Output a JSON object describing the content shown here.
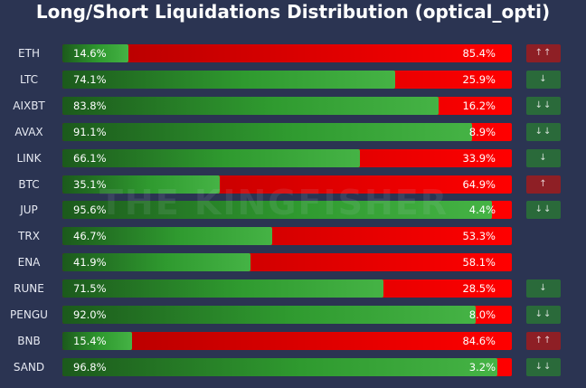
{
  "title": "Long/Short Liquidations Distribution (optical_opti)",
  "watermark": "THE KINGFISHER",
  "colors": {
    "background": "#2b3452",
    "long": "#3aa63a",
    "short": "#e00000",
    "signal_up": "#8e1f25",
    "signal_down": "#2a6a3a"
  },
  "rows": [
    {
      "symbol": "ETH",
      "long_label": "14.6%",
      "short_label": "85.4%",
      "signal": "↑↑",
      "signal_type": "up"
    },
    {
      "symbol": "LTC",
      "long_label": "74.1%",
      "short_label": "25.9%",
      "signal": "↓",
      "signal_type": "down"
    },
    {
      "symbol": "AIXBT",
      "long_label": "83.8%",
      "short_label": "16.2%",
      "signal": "↓↓",
      "signal_type": "down"
    },
    {
      "symbol": "AVAX",
      "long_label": "91.1%",
      "short_label": "8.9%",
      "signal": "↓↓",
      "signal_type": "down"
    },
    {
      "symbol": "LINK",
      "long_label": "66.1%",
      "short_label": "33.9%",
      "signal": "↓",
      "signal_type": "down"
    },
    {
      "symbol": "BTC",
      "long_label": "35.1%",
      "short_label": "64.9%",
      "signal": "↑",
      "signal_type": "up"
    },
    {
      "symbol": "JUP",
      "long_label": "95.6%",
      "short_label": "4.4%",
      "signal": "↓↓",
      "signal_type": "down"
    },
    {
      "symbol": "TRX",
      "long_label": "46.7%",
      "short_label": "53.3%",
      "signal": "",
      "signal_type": "none"
    },
    {
      "symbol": "ENA",
      "long_label": "41.9%",
      "short_label": "58.1%",
      "signal": "",
      "signal_type": "none"
    },
    {
      "symbol": "RUNE",
      "long_label": "71.5%",
      "short_label": "28.5%",
      "signal": "↓",
      "signal_type": "down"
    },
    {
      "symbol": "PENGU",
      "long_label": "92.0%",
      "short_label": "8.0%",
      "signal": "↓↓",
      "signal_type": "down"
    },
    {
      "symbol": "BNB",
      "long_label": "15.4%",
      "short_label": "84.6%",
      "signal": "↑↑",
      "signal_type": "up"
    },
    {
      "symbol": "SAND",
      "long_label": "96.8%",
      "short_label": "3.2%",
      "signal": "↓↓",
      "signal_type": "down"
    }
  ],
  "chart_data": {
    "type": "bar",
    "stacked": true,
    "orientation": "horizontal",
    "title": "Long/Short Liquidations Distribution (optical_opti)",
    "categories": [
      "ETH",
      "LTC",
      "AIXBT",
      "AVAX",
      "LINK",
      "BTC",
      "JUP",
      "TRX",
      "ENA",
      "RUNE",
      "PENGU",
      "BNB",
      "SAND"
    ],
    "series": [
      {
        "values": [
          14.6,
          74.1,
          83.8,
          91.1,
          66.1,
          35.1,
          95.6,
          46.7,
          41.9,
          71.5,
          92.0,
          15.4,
          96.8
        ],
        "color": "#3aa63a"
      },
      {
        "values": [
          85.4,
          25.9,
          16.2,
          8.9,
          33.9,
          64.9,
          4.4,
          53.3,
          58.1,
          28.5,
          8.0,
          84.6,
          3.2
        ],
        "color": "#e00000"
      }
    ],
    "xlim": [
      0,
      100
    ],
    "grid": false,
    "legend": "none"
  }
}
